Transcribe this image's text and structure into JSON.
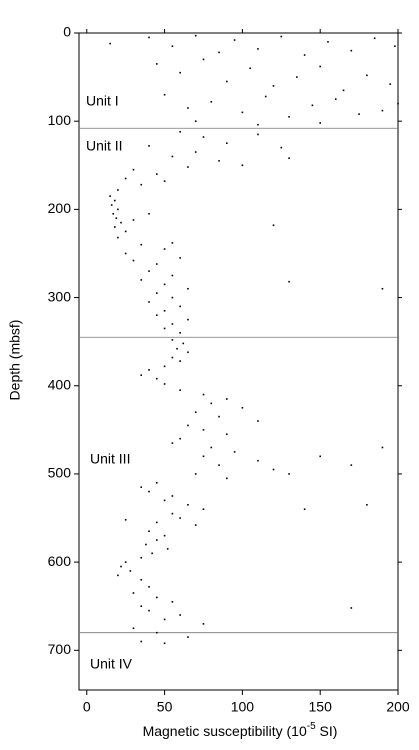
{
  "chart_data": {
    "type": "scatter",
    "x_label": {
      "text": "Magnetic susceptibility (10",
      "exponent": "-5",
      "unit": " SI)"
    },
    "y_label": "Depth (mbsf)",
    "color": "#000000",
    "x": [
      15,
      40,
      55,
      70,
      85,
      95,
      110,
      125,
      140,
      155,
      170,
      185,
      198,
      45,
      60,
      75,
      90,
      105,
      120,
      135,
      150,
      165,
      180,
      195,
      50,
      65,
      80,
      100,
      115,
      130,
      145,
      160,
      175,
      190,
      70,
      110,
      150,
      200,
      60,
      75,
      90,
      110,
      125,
      40,
      55,
      70,
      85,
      100,
      130,
      30,
      45,
      65,
      25,
      35,
      50,
      20,
      15,
      18,
      16,
      20,
      17,
      19,
      22,
      18,
      25,
      30,
      40,
      20,
      35,
      50,
      25,
      55,
      120,
      30,
      45,
      60,
      40,
      55,
      35,
      50,
      65,
      45,
      55,
      40,
      60,
      50,
      45,
      65,
      55,
      50,
      60,
      190,
      130,
      55,
      62,
      58,
      65,
      55,
      60,
      50,
      40,
      35,
      45,
      50,
      60,
      75,
      90,
      80,
      100,
      70,
      85,
      110,
      65,
      75,
      90,
      60,
      55,
      80,
      95,
      75,
      110,
      85,
      120,
      70,
      90,
      150,
      170,
      130,
      190,
      45,
      35,
      40,
      55,
      50,
      65,
      75,
      55,
      60,
      45,
      70,
      140,
      180,
      25,
      40,
      50,
      45,
      38,
      52,
      42,
      35,
      25,
      22,
      28,
      20,
      35,
      40,
      30,
      45,
      55,
      35,
      40,
      60,
      50,
      75,
      30,
      45,
      65,
      35,
      50,
      170
    ],
    "values": [
      12,
      5,
      15,
      3,
      22,
      8,
      18,
      4,
      25,
      10,
      20,
      6,
      15,
      35,
      45,
      30,
      55,
      40,
      60,
      50,
      38,
      65,
      48,
      58,
      70,
      85,
      78,
      90,
      72,
      95,
      82,
      75,
      92,
      88,
      100,
      104,
      102,
      80,
      112,
      118,
      125,
      115,
      130,
      128,
      140,
      135,
      145,
      150,
      142,
      155,
      160,
      152,
      165,
      172,
      168,
      178,
      185,
      190,
      195,
      200,
      205,
      210,
      215,
      220,
      225,
      212,
      205,
      232,
      240,
      245,
      250,
      238,
      218,
      258,
      262,
      255,
      270,
      275,
      280,
      285,
      290,
      295,
      300,
      305,
      310,
      315,
      320,
      325,
      330,
      335,
      340,
      290,
      282,
      348,
      352,
      358,
      362,
      368,
      372,
      378,
      382,
      388,
      392,
      398,
      405,
      410,
      415,
      420,
      425,
      430,
      435,
      440,
      445,
      450,
      455,
      460,
      465,
      470,
      475,
      480,
      485,
      490,
      495,
      500,
      505,
      480,
      490,
      500,
      470,
      510,
      515,
      520,
      525,
      530,
      535,
      540,
      545,
      550,
      555,
      558,
      540,
      535,
      552,
      565,
      570,
      575,
      580,
      585,
      590,
      595,
      600,
      605,
      610,
      615,
      620,
      628,
      635,
      640,
      645,
      650,
      655,
      660,
      665,
      670,
      675,
      680,
      685,
      690,
      692,
      652
    ],
    "xlim": [
      -5,
      200
    ],
    "xticks": [
      0,
      50,
      100,
      150,
      200
    ],
    "ylim": [
      0,
      745
    ],
    "yticks": [
      0,
      100,
      200,
      300,
      400,
      500,
      600,
      700
    ],
    "y_inverted": true,
    "unit_boundaries": [
      108,
      345,
      680
    ],
    "annotations": [
      "Unit I",
      "Unit II",
      "Unit III",
      "Unit IV"
    ]
  }
}
